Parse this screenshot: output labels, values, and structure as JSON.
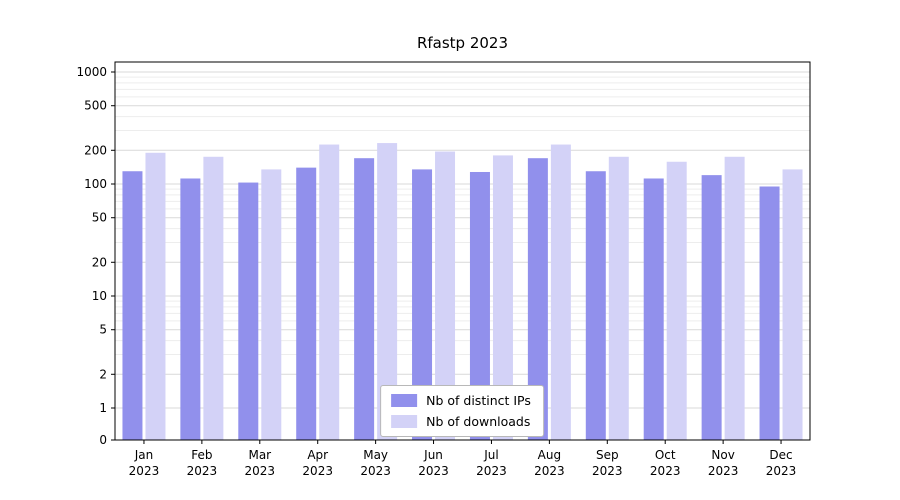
{
  "figure": {
    "title": "Rfastp 2023"
  },
  "chart_data": {
    "type": "bar",
    "title": "Rfastp 2023",
    "scale": "symlog",
    "grid": true,
    "xlabel": "",
    "ylabel": "",
    "ylim": [
      0,
      1300
    ],
    "yticks": [
      0,
      1,
      2,
      5,
      10,
      20,
      50,
      100,
      200,
      500,
      1000
    ],
    "minor_yticks": [
      3,
      4,
      6,
      7,
      8,
      9,
      30,
      40,
      60,
      70,
      80,
      90,
      300,
      400,
      600,
      700,
      800,
      900
    ],
    "categories": [
      "Jan 2023",
      "Feb 2023",
      "Mar 2023",
      "Apr 2023",
      "May 2023",
      "Jun 2023",
      "Jul 2023",
      "Aug 2023",
      "Sep 2023",
      "Oct 2023",
      "Nov 2023",
      "Dec 2023"
    ],
    "series": [
      {
        "name": "Nb of distinct IPs",
        "color": "#9190ec",
        "values": [
          130,
          112,
          103,
          140,
          170,
          135,
          128,
          170,
          130,
          112,
          120,
          95
        ]
      },
      {
        "name": "Nb of downloads",
        "color": "#d3d2f7",
        "values": [
          190,
          175,
          135,
          225,
          232,
          195,
          180,
          225,
          175,
          158,
          175,
          135
        ]
      }
    ],
    "legend_position": "lower center"
  }
}
